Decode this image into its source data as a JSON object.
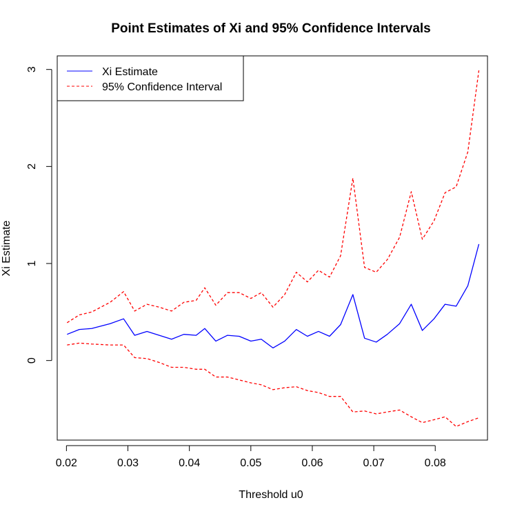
{
  "chart_data": {
    "type": "line",
    "title": "Point Estimates of Xi and 95% Confidence Intervals",
    "xlabel": "Threshold u0",
    "ylabel": "Xi Estimate",
    "xlim": [
      0.0185,
      0.0885
    ],
    "ylim": [
      -0.82,
      3.14
    ],
    "x_ticks": [
      0.02,
      0.03,
      0.04,
      0.05,
      0.06,
      0.07,
      0.08
    ],
    "x_tick_labels": [
      "0.02",
      "0.03",
      "0.04",
      "0.05",
      "0.06",
      "0.07",
      "0.08"
    ],
    "y_ticks": [
      0,
      1,
      2,
      3
    ],
    "y_tick_labels": [
      "0",
      "1",
      "2",
      "3"
    ],
    "grid": false,
    "legend_position": "top-left",
    "x": [
      0.0201,
      0.0221,
      0.0241,
      0.0271,
      0.0293,
      0.0311,
      0.0331,
      0.0351,
      0.0371,
      0.0391,
      0.0411,
      0.0425,
      0.0443,
      0.0462,
      0.0481,
      0.05,
      0.0517,
      0.0536,
      0.0555,
      0.0574,
      0.0592,
      0.061,
      0.0628,
      0.0646,
      0.0666,
      0.0685,
      0.0704,
      0.0722,
      0.0742,
      0.0761,
      0.0779,
      0.0798,
      0.0816,
      0.0834,
      0.0853,
      0.0871
    ],
    "series": [
      {
        "name": "Xi Estimate",
        "color": "#0000ff",
        "style": "solid",
        "values": [
          0.27,
          0.32,
          0.33,
          0.38,
          0.43,
          0.26,
          0.3,
          0.26,
          0.22,
          0.27,
          0.26,
          0.33,
          0.2,
          0.26,
          0.25,
          0.2,
          0.22,
          0.13,
          0.2,
          0.32,
          0.25,
          0.3,
          0.25,
          0.37,
          0.68,
          0.23,
          0.19,
          0.27,
          0.38,
          0.58,
          0.31,
          0.43,
          0.58,
          0.56,
          0.77,
          1.2
        ]
      },
      {
        "name": "95% Confidence Interval",
        "color": "#ff0000",
        "style": "dashed",
        "values": [
          0.39,
          0.47,
          0.5,
          0.6,
          0.71,
          0.51,
          0.58,
          0.55,
          0.51,
          0.6,
          0.62,
          0.75,
          0.57,
          0.7,
          0.7,
          0.64,
          0.7,
          0.55,
          0.68,
          0.91,
          0.81,
          0.93,
          0.86,
          1.08,
          1.88,
          0.96,
          0.91,
          1.04,
          1.27,
          1.74,
          1.25,
          1.44,
          1.73,
          1.79,
          2.15,
          2.99
        ]
      },
      {
        "name": "95% Confidence Interval",
        "color": "#ff0000",
        "style": "dashed",
        "values": [
          0.16,
          0.18,
          0.17,
          0.16,
          0.16,
          0.03,
          0.02,
          -0.02,
          -0.07,
          -0.07,
          -0.09,
          -0.09,
          -0.17,
          -0.17,
          -0.2,
          -0.23,
          -0.25,
          -0.3,
          -0.28,
          -0.27,
          -0.31,
          -0.33,
          -0.37,
          -0.37,
          -0.53,
          -0.52,
          -0.55,
          -0.53,
          -0.51,
          -0.58,
          -0.64,
          -0.61,
          -0.58,
          -0.68,
          -0.63,
          -0.59
        ]
      }
    ],
    "legend": [
      {
        "label": "Xi Estimate",
        "color": "#0000ff",
        "style": "solid"
      },
      {
        "label": "95% Confidence Interval",
        "color": "#ff0000",
        "style": "dashed"
      }
    ]
  }
}
